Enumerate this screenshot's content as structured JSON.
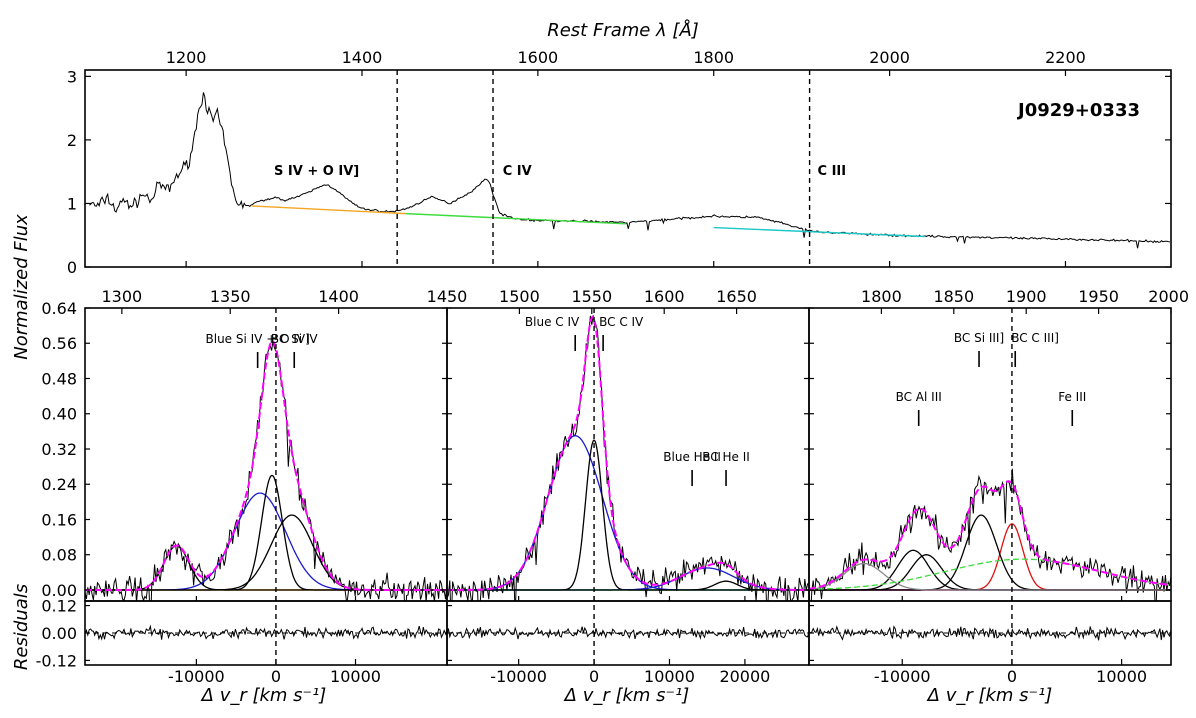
{
  "figure": {
    "top_xlabel": "Rest Frame λ [Å]",
    "ylabel_flux": "Normalized Flux",
    "ylabel_resid": "Residuals",
    "bottom_xlabel": "Δ v_r [km s⁻¹]",
    "object_name": "J0929+0333"
  },
  "chart_data": [
    {
      "id": "overview",
      "type": "line",
      "title": "J0929+0333",
      "xlabel": "Rest Frame λ [Å]",
      "ylabel": "Normalized Flux",
      "xlim": [
        1085,
        2320
      ],
      "ylim": [
        0,
        3.1
      ],
      "x_ticks": [
        1200,
        1400,
        1600,
        1800,
        2000,
        2200
      ],
      "y_ticks": [
        0,
        1,
        2,
        3
      ],
      "vlines": [
        1440,
        1549,
        1909
      ],
      "line_labels": [
        {
          "text": "S IV + O IV]",
          "x": 1300,
          "y": 1.45
        },
        {
          "text": "C IV",
          "x": 1560,
          "y": 1.45
        },
        {
          "text": "C III",
          "x": 1918,
          "y": 1.45
        }
      ],
      "spectrum": {
        "name": "Spectrum",
        "x": [
          1090,
          1100,
          1110,
          1120,
          1130,
          1140,
          1150,
          1160,
          1170,
          1180,
          1190,
          1200,
          1205,
          1210,
          1215,
          1220,
          1225,
          1230,
          1235,
          1240,
          1245,
          1250,
          1255,
          1260,
          1265,
          1270,
          1280,
          1290,
          1300,
          1310,
          1320,
          1330,
          1340,
          1350,
          1360,
          1370,
          1380,
          1390,
          1395,
          1400,
          1410,
          1420,
          1430,
          1440,
          1450,
          1460,
          1470,
          1480,
          1490,
          1500,
          1510,
          1520,
          1530,
          1540,
          1545,
          1550,
          1555,
          1560,
          1570,
          1580,
          1600,
          1650,
          1700,
          1750,
          1800,
          1850,
          1880,
          1900,
          1920,
          1950,
          2000,
          2050,
          2100,
          2150,
          2200,
          2250,
          2300,
          2320
        ],
        "y": [
          1.0,
          0.95,
          1.1,
          0.9,
          1.05,
          0.95,
          1.15,
          1.05,
          1.3,
          1.2,
          1.45,
          1.6,
          1.75,
          2.1,
          2.5,
          2.75,
          2.45,
          2.3,
          2.4,
          2.2,
          1.85,
          1.45,
          1.1,
          1.0,
          1.0,
          0.95,
          1.02,
          1.05,
          1.1,
          1.05,
          1.08,
          1.12,
          1.18,
          1.25,
          1.3,
          1.22,
          1.1,
          1.0,
          0.95,
          0.92,
          0.9,
          0.88,
          0.87,
          0.88,
          0.92,
          0.97,
          1.05,
          1.1,
          1.05,
          1.0,
          1.08,
          1.15,
          1.25,
          1.38,
          1.35,
          1.1,
          0.9,
          0.82,
          0.78,
          0.75,
          0.73,
          0.72,
          0.7,
          0.75,
          0.8,
          0.78,
          0.68,
          0.6,
          0.55,
          0.53,
          0.5,
          0.48,
          0.47,
          0.45,
          0.44,
          0.42,
          0.4,
          0.4
        ]
      },
      "continuum_segments": [
        {
          "color": "#f5a623",
          "x": [
            1275,
            1450
          ],
          "y": [
            0.96,
            0.84
          ]
        },
        {
          "color": "#3ddc3d",
          "x": [
            1450,
            1700
          ],
          "y": [
            0.84,
            0.68
          ]
        },
        {
          "color": "#1cc7c7",
          "x": [
            1800,
            2040
          ],
          "y": [
            0.62,
            0.48
          ]
        }
      ]
    },
    {
      "id": "siiv",
      "type": "line",
      "top_xlabel_ticks": [
        1300,
        1350,
        1400,
        1450
      ],
      "top_x_range": [
        1283,
        1450
      ],
      "xlabel": "Δ v_r [km s⁻¹]",
      "ylabel": "Normalized Flux",
      "xlim": [
        -24000,
        21500
      ],
      "ylim": [
        -0.025,
        0.64
      ],
      "x_ticks": [
        -10000,
        0,
        10000
      ],
      "y_ticks": [
        0.0,
        0.08,
        0.16,
        0.24,
        0.32,
        0.4,
        0.48,
        0.56,
        0.64
      ],
      "resid_ticks": [
        -0.12,
        0.0,
        0.12
      ],
      "resid_ylim": [
        -0.14,
        0.14
      ],
      "labels": [
        {
          "text": "Blue Si IV + O IV]",
          "x": -2300,
          "tick": true
        },
        {
          "text": "BC Si IV",
          "x": 2300,
          "tick": true
        }
      ],
      "components": [
        {
          "name": "Blue Si IV",
          "color": "#1a1ad0",
          "center": -2000,
          "amp": 0.22,
          "sigma": 3200
        },
        {
          "name": "BC 1",
          "color": "#000000",
          "center": -500,
          "amp": 0.26,
          "sigma": 1300
        },
        {
          "name": "BC 2",
          "color": "#000000",
          "center": 2000,
          "amp": 0.17,
          "sigma": 2600
        },
        {
          "name": "Blend",
          "color": "#000000",
          "center": -12500,
          "amp": 0.1,
          "sigma": 1600
        }
      ],
      "continuum_color": "#f5a623"
    },
    {
      "id": "civ",
      "type": "line",
      "top_xlabel_ticks": [
        1500,
        1550,
        1600,
        1650
      ],
      "top_x_range": [
        1450,
        1700
      ],
      "xlabel": "Δ v_r [km s⁻¹]",
      "xlim": [
        -19500,
        28500
      ],
      "ylim": [
        -0.025,
        0.64
      ],
      "x_ticks": [
        -10000,
        0,
        10000,
        20000
      ],
      "labels": [
        {
          "text": "Blue C IV",
          "x": -2500,
          "tick": true
        },
        {
          "text": "BC C IV",
          "x": 1200,
          "tick": true
        },
        {
          "text": "Blue He II",
          "x": 13000,
          "tick": true
        },
        {
          "text": "BC He II",
          "x": 17500,
          "tick": true
        }
      ],
      "components": [
        {
          "name": "Blue C IV",
          "color": "#1a1ad0",
          "center": -2500,
          "amp": 0.35,
          "sigma": 3600
        },
        {
          "name": "BC C IV",
          "color": "#000000",
          "center": 0,
          "amp": 0.34,
          "sigma": 1100
        },
        {
          "name": "Blue He II",
          "color": "#1a1ad0",
          "center": 15000,
          "amp": 0.05,
          "sigma": 3500
        },
        {
          "name": "BC He II",
          "color": "#000000",
          "center": 17500,
          "amp": 0.02,
          "sigma": 1500
        }
      ],
      "continuum_color": "#3ddc3d"
    },
    {
      "id": "ciii",
      "type": "line",
      "top_xlabel_ticks": [
        1800,
        1850,
        1900,
        1950,
        2000
      ],
      "top_x_range": [
        1750,
        2000
      ],
      "xlabel": "Δ v_r [km s⁻¹]",
      "xlim": [
        -18500,
        14500
      ],
      "ylim": [
        -0.025,
        0.64
      ],
      "x_ticks": [
        -10000,
        0,
        10000
      ],
      "labels": [
        {
          "text": "BC Si III]",
          "x": -3000,
          "tick": true
        },
        {
          "text": "BC C III]",
          "x": 300,
          "tick": true
        },
        {
          "text": "BC Al III",
          "x": -8500,
          "tick": true
        },
        {
          "text": "Fe III",
          "x": 5500,
          "tick": true
        }
      ],
      "components": [
        {
          "name": "BC C III]",
          "color": "#e01010",
          "center": 0,
          "amp": 0.15,
          "sigma": 1000
        },
        {
          "name": "BC Si III]",
          "color": "#000000",
          "center": -2800,
          "amp": 0.17,
          "sigma": 1400
        },
        {
          "name": "BC Al III 1",
          "color": "#000000",
          "center": -9000,
          "amp": 0.09,
          "sigma": 1400
        },
        {
          "name": "BC Al III 2",
          "color": "#000000",
          "center": -7800,
          "amp": 0.08,
          "sigma": 1400
        },
        {
          "name": "Blend",
          "color": "#888888",
          "center": -13500,
          "amp": 0.06,
          "sigma": 1800
        },
        {
          "name": "Fe III",
          "color": "#3ddc3d",
          "center": 1000,
          "amp": 0.07,
          "sigma": 7000
        }
      ],
      "continuum_color": "#6a1a8a"
    }
  ]
}
